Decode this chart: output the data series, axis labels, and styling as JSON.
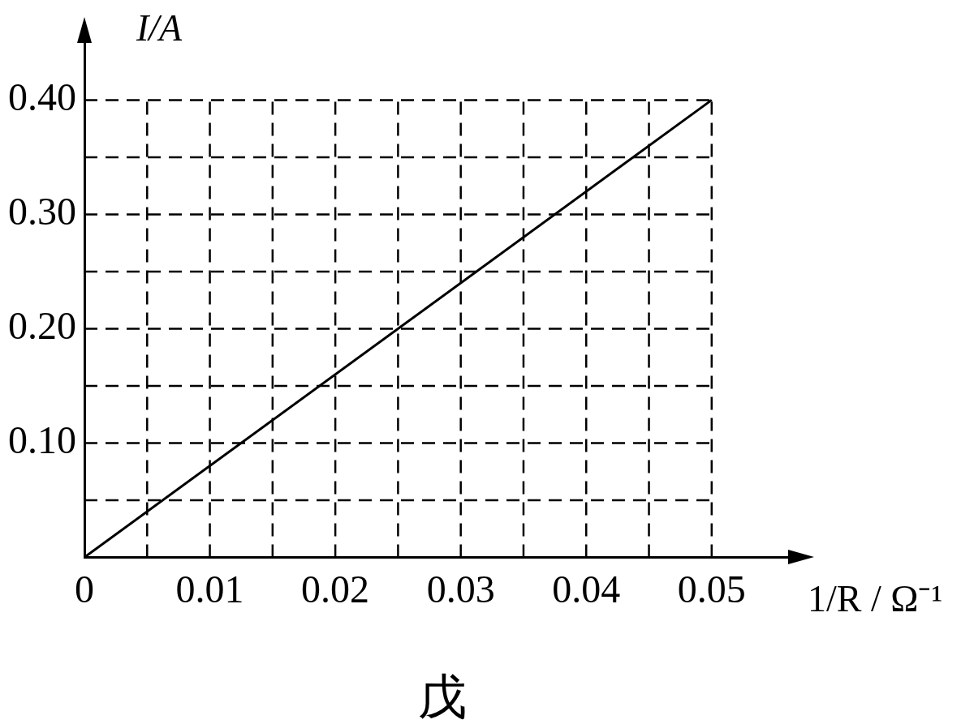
{
  "chart_data": {
    "type": "line",
    "xlabel": "1/R / Ω⁻¹",
    "ylabel": "I/A",
    "annotations": [
      "戊"
    ],
    "x": [
      0,
      0.05
    ],
    "series": [
      {
        "color": "#000000",
        "values": [
          0,
          0.4
        ]
      }
    ],
    "xlim": [
      0,
      0.057
    ],
    "ylim": [
      0,
      0.46
    ],
    "xticks": [
      {
        "value": 0,
        "label": "0"
      },
      {
        "value": 0.005,
        "label": null
      },
      {
        "value": 0.01,
        "label": "0.01"
      },
      {
        "value": 0.015,
        "label": null
      },
      {
        "value": 0.02,
        "label": "0.02"
      },
      {
        "value": 0.025,
        "label": null
      },
      {
        "value": 0.03,
        "label": "0.03"
      },
      {
        "value": 0.035,
        "label": null
      },
      {
        "value": 0.04,
        "label": "0.04"
      },
      {
        "value": 0.045,
        "label": null
      },
      {
        "value": 0.05,
        "label": "0.05"
      }
    ],
    "yticks": [
      {
        "value": 0,
        "label": null
      },
      {
        "value": 0.05,
        "label": null
      },
      {
        "value": 0.1,
        "label": "0.10"
      },
      {
        "value": 0.15,
        "label": null
      },
      {
        "value": 0.2,
        "label": "0.20"
      },
      {
        "value": 0.25,
        "label": null
      },
      {
        "value": 0.3,
        "label": "0.30"
      },
      {
        "value": 0.35,
        "label": null
      },
      {
        "value": 0.4,
        "label": "0.40"
      }
    ],
    "grid": true,
    "marker": "none",
    "line_style": "solid",
    "legend": false
  }
}
